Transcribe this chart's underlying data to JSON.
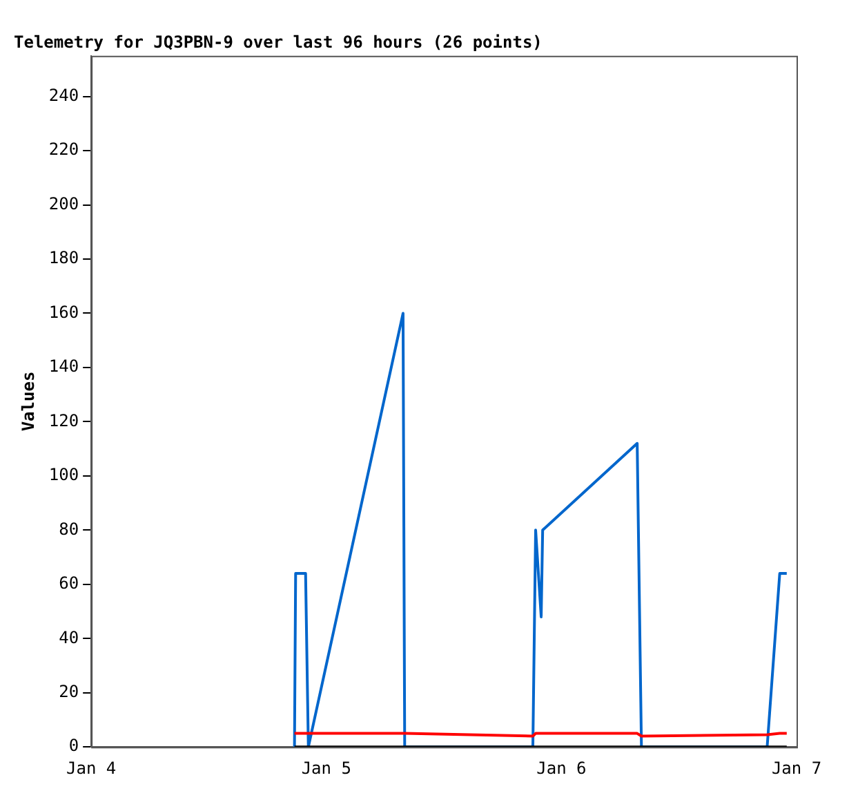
{
  "chart_data": {
    "type": "line",
    "title": "Telemetry for JQ3PBN-9 over last 96 hours (26 points)",
    "ylabel": "Values",
    "x": [
      "--01-04T20:45",
      "--01-04T20:52",
      "--01-04T21:53",
      "--01-04T22:10",
      "--01-05T07:50",
      "--01-05T08:00",
      "--01-05T21:05",
      "--01-05T21:22",
      "--01-05T21:56",
      "--01-05T22:05",
      "--01-06T07:44",
      "--01-06T08:10",
      "--01-06T21:00",
      "--01-06T22:17",
      "--01-06T23:00"
    ],
    "series": [
      {
        "color": "#000000",
        "values": [
          0,
          0,
          0,
          0,
          0,
          0,
          0,
          0,
          0,
          0,
          0,
          0,
          0,
          0,
          0
        ]
      },
      {
        "color": "#ff0000",
        "values": [
          5,
          5,
          5,
          5,
          5,
          5,
          4,
          5,
          5,
          5,
          5,
          4,
          4.5,
          5,
          5
        ]
      },
      {
        "color": "#0066cc",
        "values": [
          0,
          64,
          64,
          0,
          160,
          0,
          0,
          80,
          48,
          80,
          112,
          0,
          0,
          64,
          64
        ]
      }
    ],
    "xlim": [
      "--01-04",
      "--01-07"
    ],
    "xticks": [
      {
        "value": "--01-04",
        "label": "Jan 4"
      },
      {
        "value": "--01-05",
        "label": "Jan 5"
      },
      {
        "value": "--01-06",
        "label": "Jan 6"
      },
      {
        "value": "--01-07",
        "label": "Jan 7"
      }
    ],
    "ylim": [
      0,
      255
    ],
    "yticks": [
      0,
      20,
      40,
      60,
      80,
      100,
      120,
      140,
      160,
      180,
      200,
      220,
      240
    ],
    "grid": false,
    "legend": false,
    "marker": "none",
    "line_style": "solid"
  }
}
